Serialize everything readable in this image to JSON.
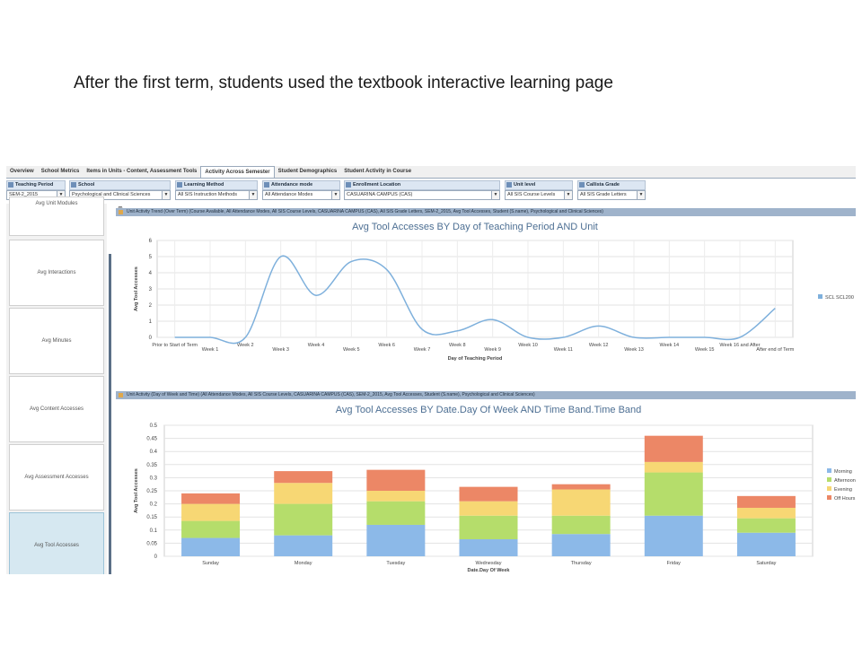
{
  "slide_title": "After the first term, students used the textbook interactive learning page",
  "tabs": [
    {
      "label": "Overview",
      "active": false
    },
    {
      "label": "School Metrics",
      "active": false
    },
    {
      "label": "Items in Units - Content, Assessment Tools",
      "active": false
    },
    {
      "label": "Activity Across Semester",
      "active": true
    },
    {
      "label": "Student Demographics",
      "active": false
    },
    {
      "label": "Student Activity in Course",
      "active": false
    }
  ],
  "filters": [
    {
      "label": "Teaching Period",
      "value": "SEM-2_2015"
    },
    {
      "label": "School",
      "value": "Psychological and Clinical Sciences"
    },
    {
      "label": "Learning Method",
      "value": "All SIS Instruction Methods"
    },
    {
      "label": "Attendance mode",
      "value": "All Attendance Modes"
    },
    {
      "label": "Enrollment Location",
      "value": "CASUARINA CAMPUS (CAS)"
    },
    {
      "label": "Unit level",
      "value": "All SIS Course Levels"
    },
    {
      "label": "Callista Grade",
      "value": "All SIS Grade Letters"
    }
  ],
  "left_tiles": [
    {
      "label": "Avg Unit Modules",
      "selected": false
    },
    {
      "label": "Avg Interactions",
      "selected": false
    },
    {
      "label": "Avg Minutes",
      "selected": false
    },
    {
      "label": "Avg Content Accesses",
      "selected": false
    },
    {
      "label": "Avg Assessment Accesses",
      "selected": false
    },
    {
      "label": "Avg Tool Accesses",
      "selected": true
    }
  ],
  "collapse_icon": "double-chevron-up-icon",
  "panel1_header": "Unit Activity Trend (Over Term)  (Course Available, All Attendance Modes, All SIS Course Levels, CASUARINA CAMPUS (CAS), All SIS Grade Letters, SEM-2_2015, Avg Tool Accesses, Student (S.name), Psychological and Clinical Sciences)",
  "panel2_header": "Unit Activity (Day of Week and Time)  (All Attendance Modes, All SIS Course Levels, CASUARINA CAMPUS (CAS), SEM-2_2015, Avg Tool Accesses, Student (S.name), Psychological and Clinical Sciences)",
  "chart_data": [
    {
      "type": "line",
      "title": "Avg Tool Accesses BY Day of Teaching Period AND Unit",
      "xlabel": "Day of Teaching Period",
      "ylabel": "Avg Tool Accesses",
      "ylim": [
        0,
        6
      ],
      "yticks": [
        0,
        1,
        2,
        3,
        4,
        5,
        6
      ],
      "categories": [
        "Prior to Start of Term",
        "Week 1",
        "Week 2",
        "Week 3",
        "Week 4",
        "Week 5",
        "Week 6",
        "Week 7",
        "Week 8",
        "Week 9",
        "Week 10",
        "Week 11",
        "Week 12",
        "Week 13",
        "Week 14",
        "Week 15",
        "Week 16 and After",
        "After end of Term"
      ],
      "series": [
        {
          "name": "SCL SCL200",
          "color": "#7eb0dc",
          "values": [
            0,
            0,
            0,
            5.0,
            2.6,
            4.7,
            4.2,
            0.5,
            0.4,
            1.1,
            0.0,
            0.0,
            0.7,
            0.0,
            0.0,
            0.0,
            0.0,
            1.8
          ]
        }
      ],
      "grid": true,
      "legend": "right"
    },
    {
      "type": "bar",
      "stacked": true,
      "title": "Avg Tool Accesses BY Date.Day Of Week AND Time Band.Time Band",
      "xlabel": "Date.Day Of Week",
      "ylabel": "Avg Tool Accesses",
      "ylim": [
        0,
        0.5
      ],
      "yticks": [
        0,
        0.05,
        0.1,
        0.15,
        0.2,
        0.25,
        0.3,
        0.35,
        0.4,
        0.45,
        0.5
      ],
      "categories": [
        "Sunday",
        "Monday",
        "Tuesday",
        "Wednesday",
        "Thursday",
        "Friday",
        "Saturday"
      ],
      "series": [
        {
          "name": "Morning",
          "color": "#8cb9e8",
          "values": [
            0.07,
            0.08,
            0.12,
            0.065,
            0.085,
            0.155,
            0.09
          ]
        },
        {
          "name": "Afternoon",
          "color": "#b5dd6b",
          "values": [
            0.065,
            0.12,
            0.09,
            0.09,
            0.07,
            0.165,
            0.055
          ]
        },
        {
          "name": "Evening",
          "color": "#f7d774",
          "values": [
            0.065,
            0.08,
            0.04,
            0.055,
            0.1,
            0.04,
            0.04
          ]
        },
        {
          "name": "Off Hours",
          "color": "#ec8766",
          "values": [
            0.04,
            0.045,
            0.08,
            0.055,
            0.02,
            0.1,
            0.045
          ]
        }
      ],
      "grid": true,
      "legend": "right"
    }
  ]
}
